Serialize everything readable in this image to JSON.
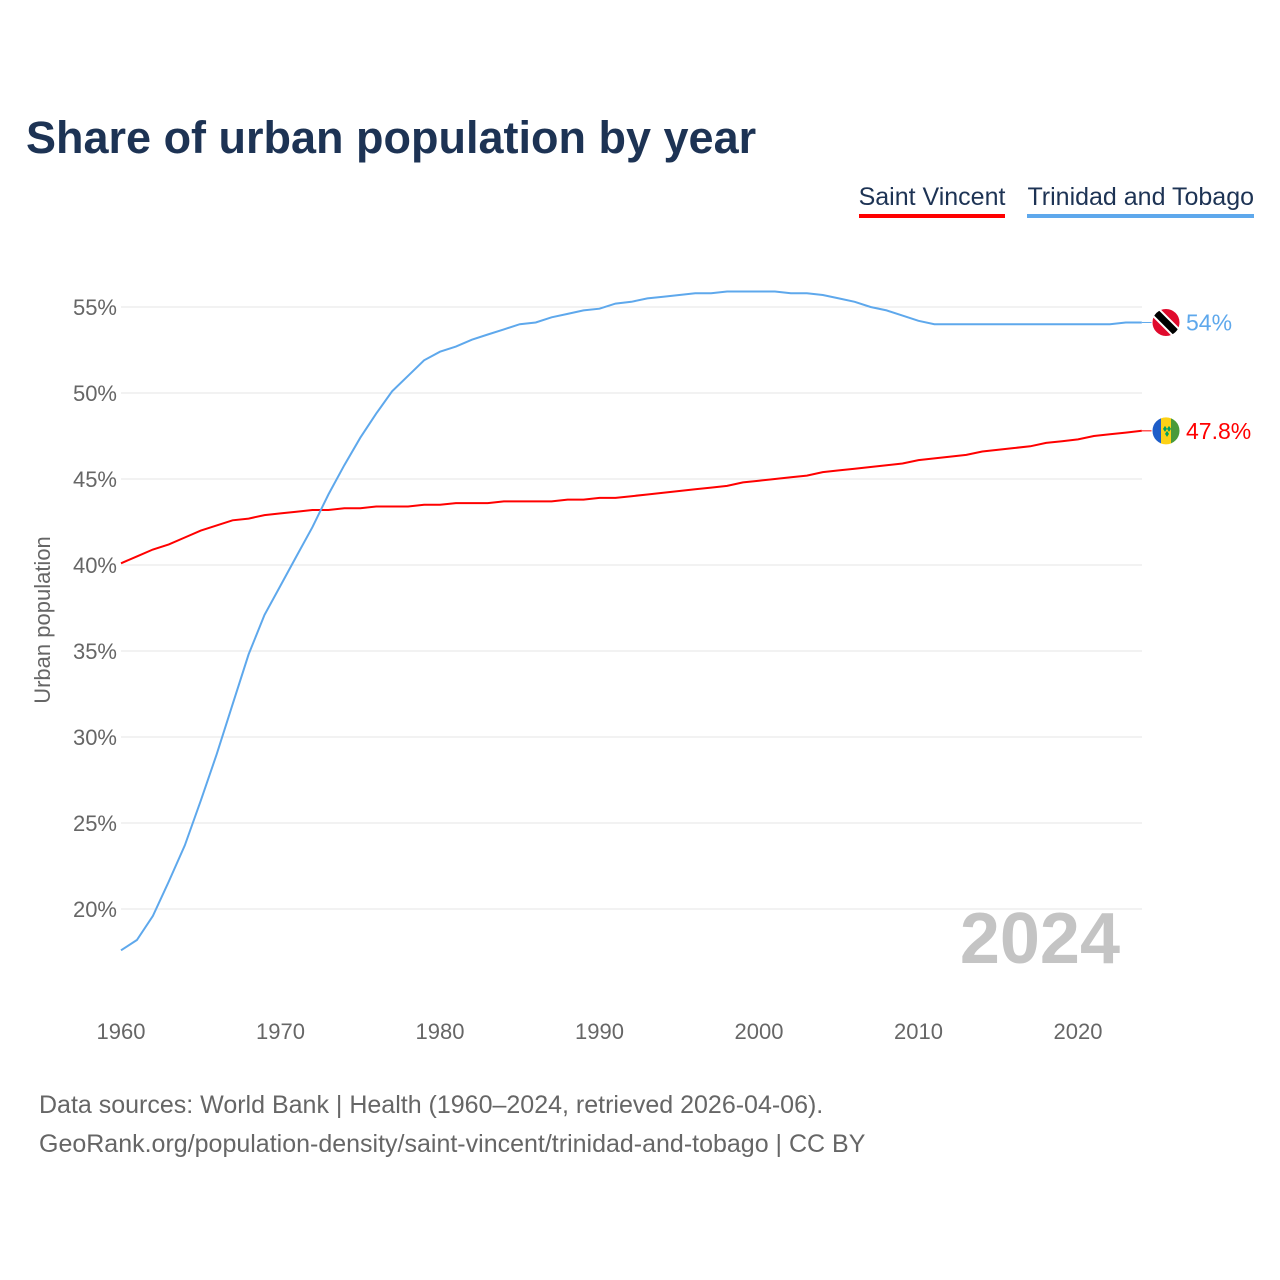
{
  "chart_data": {
    "type": "line",
    "title": "Share of urban population by year",
    "xlabel": "",
    "ylabel": "Urban population",
    "xlim": [
      1960,
      2024
    ],
    "ylim": [
      15,
      57
    ],
    "x_ticks": [
      "1960",
      "1970",
      "1980",
      "1990",
      "2000",
      "2010",
      "2020"
    ],
    "y_ticks": [
      "20%",
      "25%",
      "30%",
      "35%",
      "40%",
      "45%",
      "50%",
      "55%"
    ],
    "grid": true,
    "legend_placement": "top-right",
    "year_watermark": "2024",
    "series": [
      {
        "name": "Saint Vincent",
        "color": "#ff0000",
        "end_label": "47.8%",
        "flag": "saint-vincent-flag-icon",
        "x": [
          1960,
          1961,
          1962,
          1963,
          1964,
          1965,
          1966,
          1967,
          1968,
          1969,
          1970,
          1971,
          1972,
          1973,
          1974,
          1975,
          1976,
          1977,
          1978,
          1979,
          1980,
          1981,
          1982,
          1983,
          1984,
          1985,
          1986,
          1987,
          1988,
          1989,
          1990,
          1991,
          1992,
          1993,
          1994,
          1995,
          1996,
          1997,
          1998,
          1999,
          2000,
          2001,
          2002,
          2003,
          2004,
          2005,
          2006,
          2007,
          2008,
          2009,
          2010,
          2011,
          2012,
          2013,
          2014,
          2015,
          2016,
          2017,
          2018,
          2019,
          2020,
          2021,
          2022,
          2023,
          2024
        ],
        "values": [
          40.1,
          40.5,
          40.9,
          41.2,
          41.6,
          42.0,
          42.3,
          42.6,
          42.7,
          42.9,
          43.0,
          43.1,
          43.2,
          43.2,
          43.3,
          43.3,
          43.4,
          43.4,
          43.4,
          43.5,
          43.5,
          43.6,
          43.6,
          43.6,
          43.7,
          43.7,
          43.7,
          43.7,
          43.8,
          43.8,
          43.9,
          43.9,
          44.0,
          44.1,
          44.2,
          44.3,
          44.4,
          44.5,
          44.6,
          44.8,
          44.9,
          45.0,
          45.1,
          45.2,
          45.4,
          45.5,
          45.6,
          45.7,
          45.8,
          45.9,
          46.1,
          46.2,
          46.3,
          46.4,
          46.6,
          46.7,
          46.8,
          46.9,
          47.1,
          47.2,
          47.3,
          47.5,
          47.6,
          47.7,
          47.8
        ]
      },
      {
        "name": "Trinidad and Tobago",
        "color": "#5ea8ec",
        "end_label": "54%",
        "flag": "trinidad-flag-icon",
        "x": [
          1960,
          1961,
          1962,
          1963,
          1964,
          1965,
          1966,
          1967,
          1968,
          1969,
          1970,
          1971,
          1972,
          1973,
          1974,
          1975,
          1976,
          1977,
          1978,
          1979,
          1980,
          1981,
          1982,
          1983,
          1984,
          1985,
          1986,
          1987,
          1988,
          1989,
          1990,
          1991,
          1992,
          1993,
          1994,
          1995,
          1996,
          1997,
          1998,
          1999,
          2000,
          2001,
          2002,
          2003,
          2004,
          2005,
          2006,
          2007,
          2008,
          2009,
          2010,
          2011,
          2012,
          2013,
          2014,
          2015,
          2016,
          2017,
          2018,
          2019,
          2020,
          2021,
          2022,
          2023,
          2024
        ],
        "values": [
          17.6,
          18.2,
          19.6,
          21.6,
          23.7,
          26.3,
          29.0,
          31.9,
          34.8,
          37.1,
          38.8,
          40.5,
          42.2,
          44.1,
          45.8,
          47.4,
          48.8,
          50.1,
          51.0,
          51.9,
          52.4,
          52.7,
          53.1,
          53.4,
          53.7,
          54.0,
          54.1,
          54.4,
          54.6,
          54.8,
          54.9,
          55.2,
          55.3,
          55.5,
          55.6,
          55.7,
          55.8,
          55.8,
          55.9,
          55.9,
          55.9,
          55.9,
          55.8,
          55.8,
          55.7,
          55.5,
          55.3,
          55.0,
          54.8,
          54.5,
          54.2,
          54.0,
          54.0,
          54.0,
          54.0,
          54.0,
          54.0,
          54.0,
          54.0,
          54.0,
          54.0,
          54.0,
          54.0,
          54.1,
          54.1
        ]
      }
    ]
  },
  "footer": {
    "line1": "Data sources: World Bank | Health (1960–2024, retrieved 2026-04-06).",
    "line2": "GeoRank.org/population-density/saint-vincent/trinidad-and-tobago | CC BY"
  }
}
